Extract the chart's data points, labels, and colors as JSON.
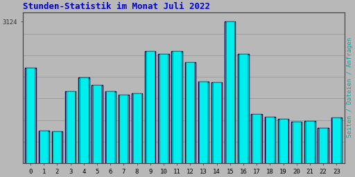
{
  "title": "Stunden-Statistik im Monat Juli 2022",
  "title_color": "#0000cc",
  "title_fontsize": 9,
  "ylabel_right": "Seiten / Dateien / Anfragen",
  "ylabel_right_color": "#00aaaa",
  "background_color": "#b8b8b8",
  "plot_bg_color": "#b8b8b8",
  "bar_face_color": "#00eeee",
  "bar_edge_color_outer": "#000044",
  "bar_edge_color_inner": "#008888",
  "grid_color": "#999999",
  "hours": [
    0,
    1,
    2,
    3,
    4,
    5,
    6,
    7,
    8,
    9,
    10,
    11,
    12,
    13,
    14,
    15,
    16,
    17,
    18,
    19,
    20,
    21,
    22,
    23
  ],
  "values": [
    2760,
    2260,
    2250,
    2570,
    2680,
    2620,
    2570,
    2545,
    2555,
    2890,
    2870,
    2890,
    2800,
    2650,
    2640,
    3124,
    2870,
    2390,
    2370,
    2350,
    2330,
    2335,
    2280,
    2360
  ],
  "ylim_min": 2000,
  "ylim_max": 3200,
  "ytick_value": 3124,
  "ytick_label": "3124",
  "font_family": "monospace",
  "tick_fontsize": 6.5,
  "bar_width": 0.8
}
